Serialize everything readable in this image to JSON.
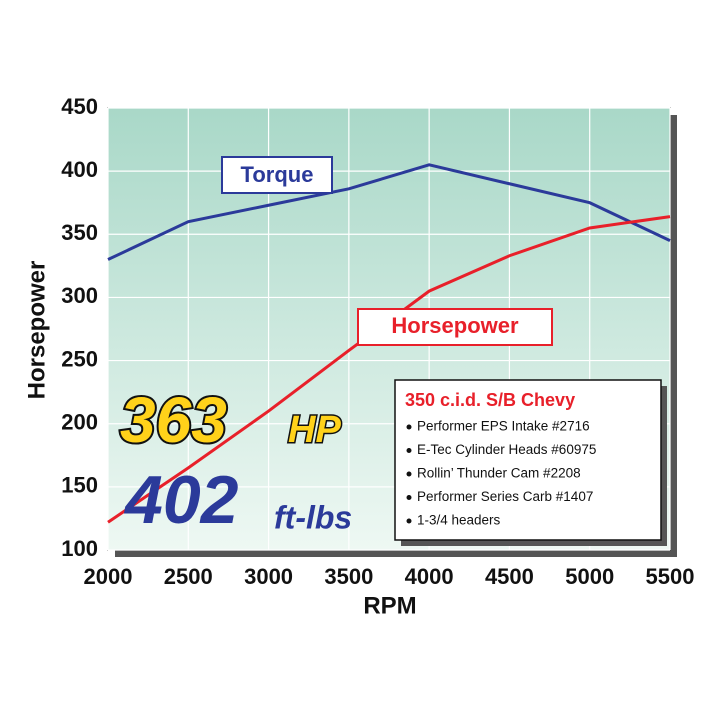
{
  "chart_data": {
    "type": "line",
    "x_label": "RPM",
    "y_label": "Horsepower",
    "x": [
      2000,
      2500,
      3000,
      3500,
      4000,
      4500,
      5000,
      5500
    ],
    "series": [
      {
        "name": "Torque",
        "color": "#2b3a9a",
        "values": [
          330,
          360,
          373,
          386,
          405,
          390,
          375,
          345
        ]
      },
      {
        "name": "Horsepower",
        "color": "#e8202a",
        "values": [
          122,
          165,
          210,
          258,
          305,
          333,
          355,
          364
        ]
      }
    ],
    "xlim": [
      2000,
      5500
    ],
    "xticks": [
      2000,
      2500,
      3000,
      3500,
      4000,
      4500,
      5000,
      5500
    ],
    "ylim": [
      100,
      450
    ],
    "yticks": [
      100,
      150,
      200,
      250,
      300,
      350,
      400,
      450
    ],
    "grid": true,
    "annotations": {
      "hp_value": "363",
      "hp_unit": "HP",
      "torque_value": "402",
      "torque_unit": "ft-lbs"
    },
    "info_box": {
      "title": "350 c.i.d. S/B Chevy",
      "items": [
        "Performer EPS Intake #2716",
        "E-Tec Cylinder Heads #60975",
        "Rollin’ Thunder Cam #2208",
        "Performer Series Carb #1407",
        "1-3/4 headers"
      ]
    }
  }
}
